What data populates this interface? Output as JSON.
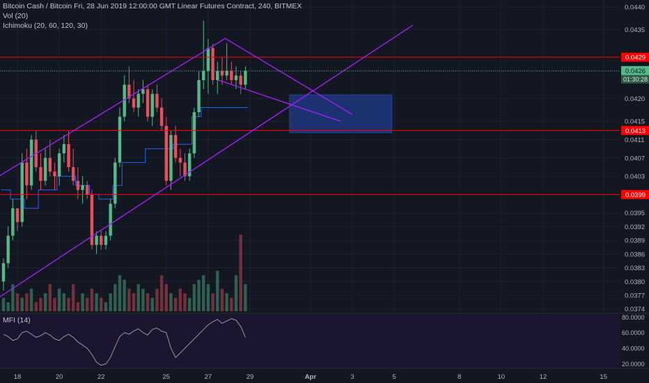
{
  "legend": {
    "symbol_line": "Bitcoin Cash / Bitcoin Fri, 28 Jun 2019 12:00:00 GMT Linear Futures Contract, 240, BITMEX",
    "volume_line": "Vol (20)",
    "ichimoku_line": "Ichimoku (20, 60, 120, 30)",
    "mfi_line": "MFI (14)"
  },
  "colors": {
    "background": "#131722",
    "up_candle": "#53b987",
    "down_candle": "#eb4d5c",
    "level_line": "#ff0000",
    "channel_line": "#a020f0",
    "target_zone": "#1f3a8a",
    "kijun": "#2962ff",
    "mfi_fill": "#3a2a5a"
  },
  "chart_data": [
    {
      "type": "candlestick",
      "title": "",
      "price_axis_labels": [
        "0.0440",
        "0.0435",
        "0.0429",
        "0.0426",
        "0.0420",
        "0.0415",
        "0.0413",
        "0.0411",
        "0.0407",
        "0.0403",
        "0.0399",
        "0.0395",
        "0.0392",
        "0.0389",
        "0.0386",
        "0.0383",
        "0.0380",
        "0.0377",
        "0.0374"
      ],
      "ylim": [
        0.03735,
        0.04415
      ],
      "time_axis_labels": [
        "18",
        "20",
        "22",
        "25",
        "27",
        "29",
        "Apr",
        "3",
        "5",
        "8",
        "10",
        "12",
        "15"
      ],
      "current_price_label": "0.0426",
      "countdown_label": "01:30:28",
      "horizontal_levels": [
        {
          "price": 0.0429,
          "label": "0.0429"
        },
        {
          "price": 0.0413,
          "label": "0.0413"
        },
        {
          "price": 0.0399,
          "label": "0.0399"
        }
      ],
      "target_zone": {
        "x_from": 61.5,
        "x_to": 83.5,
        "y_low": 0.04125,
        "y_high": 0.04208
      },
      "candles": [
        [
          0.038,
          0.0385,
          0.0378,
          0.0384
        ],
        [
          0.0384,
          0.0392,
          0.0383,
          0.039
        ],
        [
          0.039,
          0.0398,
          0.0389,
          0.0396
        ],
        [
          0.0396,
          0.0396,
          0.0391,
          0.0393
        ],
        [
          0.0393,
          0.0408,
          0.0392,
          0.0406
        ],
        [
          0.0406,
          0.0409,
          0.0398,
          0.0401
        ],
        [
          0.0401,
          0.0412,
          0.04,
          0.0411
        ],
        [
          0.0411,
          0.0413,
          0.0404,
          0.0405
        ],
        [
          0.0405,
          0.0408,
          0.04,
          0.0402
        ],
        [
          0.0402,
          0.0409,
          0.0401,
          0.0407
        ],
        [
          0.0407,
          0.0411,
          0.0403,
          0.0404
        ],
        [
          0.0404,
          0.0406,
          0.04,
          0.0403
        ],
        [
          0.0403,
          0.0409,
          0.0401,
          0.0408
        ],
        [
          0.0408,
          0.0412,
          0.0406,
          0.041
        ],
        [
          0.041,
          0.0413,
          0.0404,
          0.0405
        ],
        [
          0.0405,
          0.0409,
          0.0401,
          0.0402
        ],
        [
          0.0402,
          0.0405,
          0.0398,
          0.04
        ],
        [
          0.04,
          0.0403,
          0.0397,
          0.0401
        ],
        [
          0.0401,
          0.0402,
          0.0398,
          0.0399
        ],
        [
          0.0399,
          0.04,
          0.0387,
          0.0388
        ],
        [
          0.0388,
          0.0391,
          0.0386,
          0.039
        ],
        [
          0.039,
          0.0391,
          0.0387,
          0.0388
        ],
        [
          0.0388,
          0.0391,
          0.0387,
          0.039
        ],
        [
          0.039,
          0.0398,
          0.0389,
          0.0397
        ],
        [
          0.0397,
          0.0407,
          0.0396,
          0.0406
        ],
        [
          0.0406,
          0.0418,
          0.0405,
          0.0416
        ],
        [
          0.0416,
          0.0425,
          0.0415,
          0.0423
        ],
        [
          0.0423,
          0.0427,
          0.0419,
          0.042
        ],
        [
          0.042,
          0.0424,
          0.0417,
          0.0418
        ],
        [
          0.0418,
          0.0422,
          0.0416,
          0.0421
        ],
        [
          0.0421,
          0.0424,
          0.0419,
          0.0422
        ],
        [
          0.0422,
          0.0423,
          0.0415,
          0.0416
        ],
        [
          0.0416,
          0.0422,
          0.0414,
          0.0421
        ],
        [
          0.0421,
          0.0423,
          0.0417,
          0.0418
        ],
        [
          0.0418,
          0.042,
          0.0413,
          0.0414
        ],
        [
          0.0414,
          0.0416,
          0.0401,
          0.0402
        ],
        [
          0.0402,
          0.0413,
          0.04,
          0.0412
        ],
        [
          0.0412,
          0.0414,
          0.0406,
          0.0407
        ],
        [
          0.0407,
          0.0409,
          0.0403,
          0.0406
        ],
        [
          0.0406,
          0.0408,
          0.0402,
          0.0403
        ],
        [
          0.0403,
          0.0409,
          0.0402,
          0.0408
        ],
        [
          0.0408,
          0.0418,
          0.0407,
          0.0417
        ],
        [
          0.0417,
          0.0426,
          0.0416,
          0.0424
        ],
        [
          0.0424,
          0.0437,
          0.0422,
          0.0426
        ],
        [
          0.0426,
          0.0433,
          0.0421,
          0.0431
        ],
        [
          0.0431,
          0.0432,
          0.0423,
          0.0424
        ],
        [
          0.0424,
          0.0428,
          0.0421,
          0.0426
        ],
        [
          0.0426,
          0.0429,
          0.0423,
          0.0425
        ],
        [
          0.0425,
          0.0432,
          0.0424,
          0.0426
        ],
        [
          0.0426,
          0.0428,
          0.0423,
          0.0424
        ],
        [
          0.0424,
          0.0427,
          0.0422,
          0.0425
        ],
        [
          0.0425,
          0.0426,
          0.0421,
          0.0423
        ],
        [
          0.0423,
          0.0427,
          0.0422,
          0.0426
        ]
      ],
      "volumes": [
        3,
        2,
        6,
        4,
        3,
        4,
        5,
        2,
        3,
        4,
        6,
        3,
        5,
        4,
        3,
        6,
        2,
        4,
        3,
        5,
        4,
        3,
        2,
        4,
        6,
        8,
        7,
        5,
        4,
        6,
        5,
        4,
        3,
        5,
        8,
        6,
        4,
        3,
        5,
        4,
        3,
        6,
        7,
        8,
        6,
        4,
        9,
        5,
        4,
        3,
        8,
        17,
        6
      ],
      "kijun": [
        0.04,
        0.04,
        0.0398,
        0.0398,
        0.0398,
        0.0396,
        0.0396,
        0.0396,
        0.04,
        0.04,
        0.04,
        0.04,
        0.0403,
        0.0403,
        0.0403,
        0.0403,
        0.0401,
        0.0401,
        0.0401,
        0.0399,
        0.0399,
        0.0398,
        0.0398,
        0.0398,
        0.0401,
        0.0401,
        0.0406,
        0.0406,
        0.0406,
        0.0406,
        0.0406,
        0.0409,
        0.0409,
        0.0409,
        0.0409,
        0.0409,
        0.0409,
        0.041,
        0.041,
        0.041,
        0.041,
        0.0416,
        0.0416,
        0.0418,
        0.0418,
        0.0418,
        0.0418,
        0.0418,
        0.0418,
        0.0418,
        0.0418,
        0.0418,
        0.0418
      ],
      "mfi": {
        "axis_labels": [
          "80.0000",
          "60.0000",
          "40.0000",
          "20.0000"
        ],
        "ylim": [
          15,
          83
        ],
        "values": [
          58,
          55,
          50,
          52,
          60,
          62,
          58,
          54,
          56,
          60,
          57,
          52,
          50,
          55,
          58,
          54,
          48,
          44,
          40,
          32,
          22,
          18,
          20,
          28,
          42,
          55,
          60,
          58,
          62,
          65,
          60,
          57,
          64,
          66,
          62,
          60,
          40,
          28,
          34,
          40,
          46,
          52,
          58,
          64,
          70,
          74,
          77,
          72,
          75,
          78,
          76,
          68,
          54
        ]
      }
    }
  ]
}
